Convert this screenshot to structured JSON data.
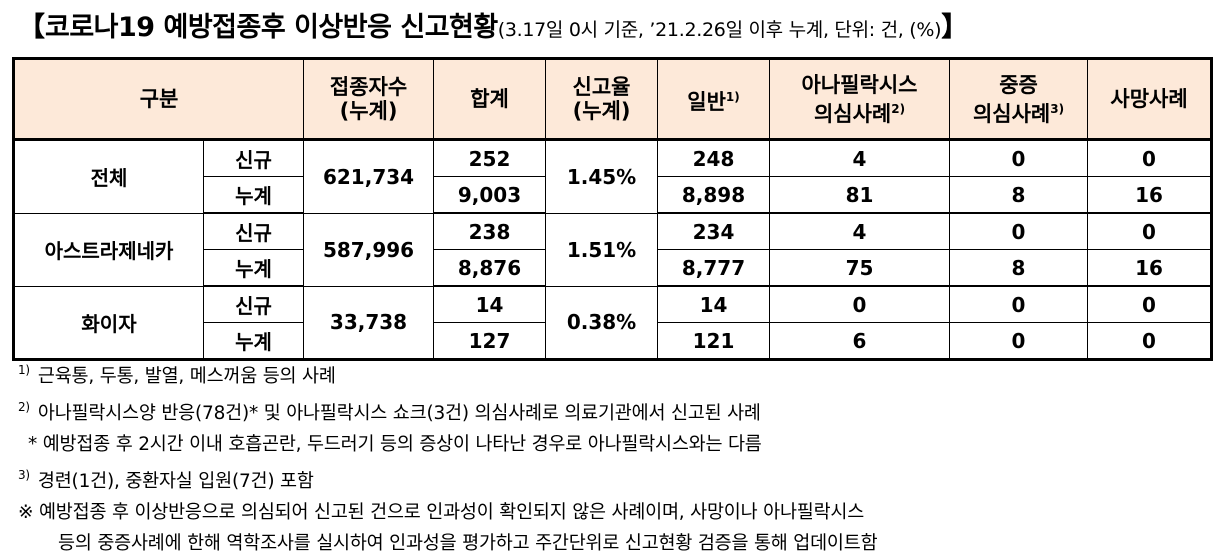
{
  "title": {
    "open_bracket": "【",
    "main": "코로나19 예방접종후 이상반응 신고현황",
    "sub": "(3.17일 0시 기준, ’21.2.26일 이후 누계, 단위: 건, (%)",
    "close_bracket": "】"
  },
  "table": {
    "headers": {
      "category": "구분",
      "vaccinated_line1": "접종자수",
      "vaccinated_line2": "(누계)",
      "total": "합계",
      "rate_line1": "신고율",
      "rate_line2": "(누계)",
      "general": "일반",
      "general_sup": "1)",
      "anaphylaxis_line1": "아나필락시스",
      "anaphylaxis_line2": "의심사례",
      "anaphylaxis_sup": "2)",
      "severe_line1": "중증",
      "severe_line2": "의심사례",
      "severe_sup": "3)",
      "death": "사망사례"
    },
    "groups": [
      {
        "name": "전체",
        "vaccinated": "621,734",
        "rate": "1.45%",
        "rows": [
          {
            "type": "신규",
            "total": "252",
            "general": "248",
            "anaphylaxis": "4",
            "severe": "0",
            "death": "0"
          },
          {
            "type": "누계",
            "total": "9,003",
            "general": "8,898",
            "anaphylaxis": "81",
            "severe": "8",
            "death": "16"
          }
        ]
      },
      {
        "name": "아스트라제네카",
        "vaccinated": "587,996",
        "rate": "1.51%",
        "rows": [
          {
            "type": "신규",
            "total": "238",
            "general": "234",
            "anaphylaxis": "4",
            "severe": "0",
            "death": "0"
          },
          {
            "type": "누계",
            "total": "8,876",
            "general": "8,777",
            "anaphylaxis": "75",
            "severe": "8",
            "death": "16"
          }
        ]
      },
      {
        "name": "화이자",
        "vaccinated": "33,738",
        "rate": "0.38%",
        "rows": [
          {
            "type": "신규",
            "total": "14",
            "general": "14",
            "anaphylaxis": "0",
            "severe": "0",
            "death": "0"
          },
          {
            "type": "누계",
            "total": "127",
            "general": "121",
            "anaphylaxis": "6",
            "severe": "0",
            "death": "0"
          }
        ]
      }
    ]
  },
  "notes": {
    "n1_mark": "1)",
    "n1": "근육통, 두통, 발열, 메스꺼움 등의 사례",
    "n2_mark": "2)",
    "n2": "아나필락시스양 반응(78건)* 및 아나필락시스 쇼크(3건) 의심사례로 의료기관에서 신고된 사례",
    "n2_star": "* 예방접종 후 2시간 이내 호흡곤란, 두드러기 등의 증상이 나타난 경우로 아나필락시스와는 다름",
    "n3_mark": "3)",
    "n3": "경련(1건), 중환자실 입원(7건) 포함",
    "ref_line1": "※ 예방접종 후 이상반응으로 의심되어 신고된 건으로 인과성이 확인되지 않은 사례이며, 사망이나 아나필락시스",
    "ref_line2": "등의 중증사례에 한해 역학조사를 실시하여 인과성을 평가하고 주간단위로 신고현황 검증을 통해 업데이트함"
  }
}
